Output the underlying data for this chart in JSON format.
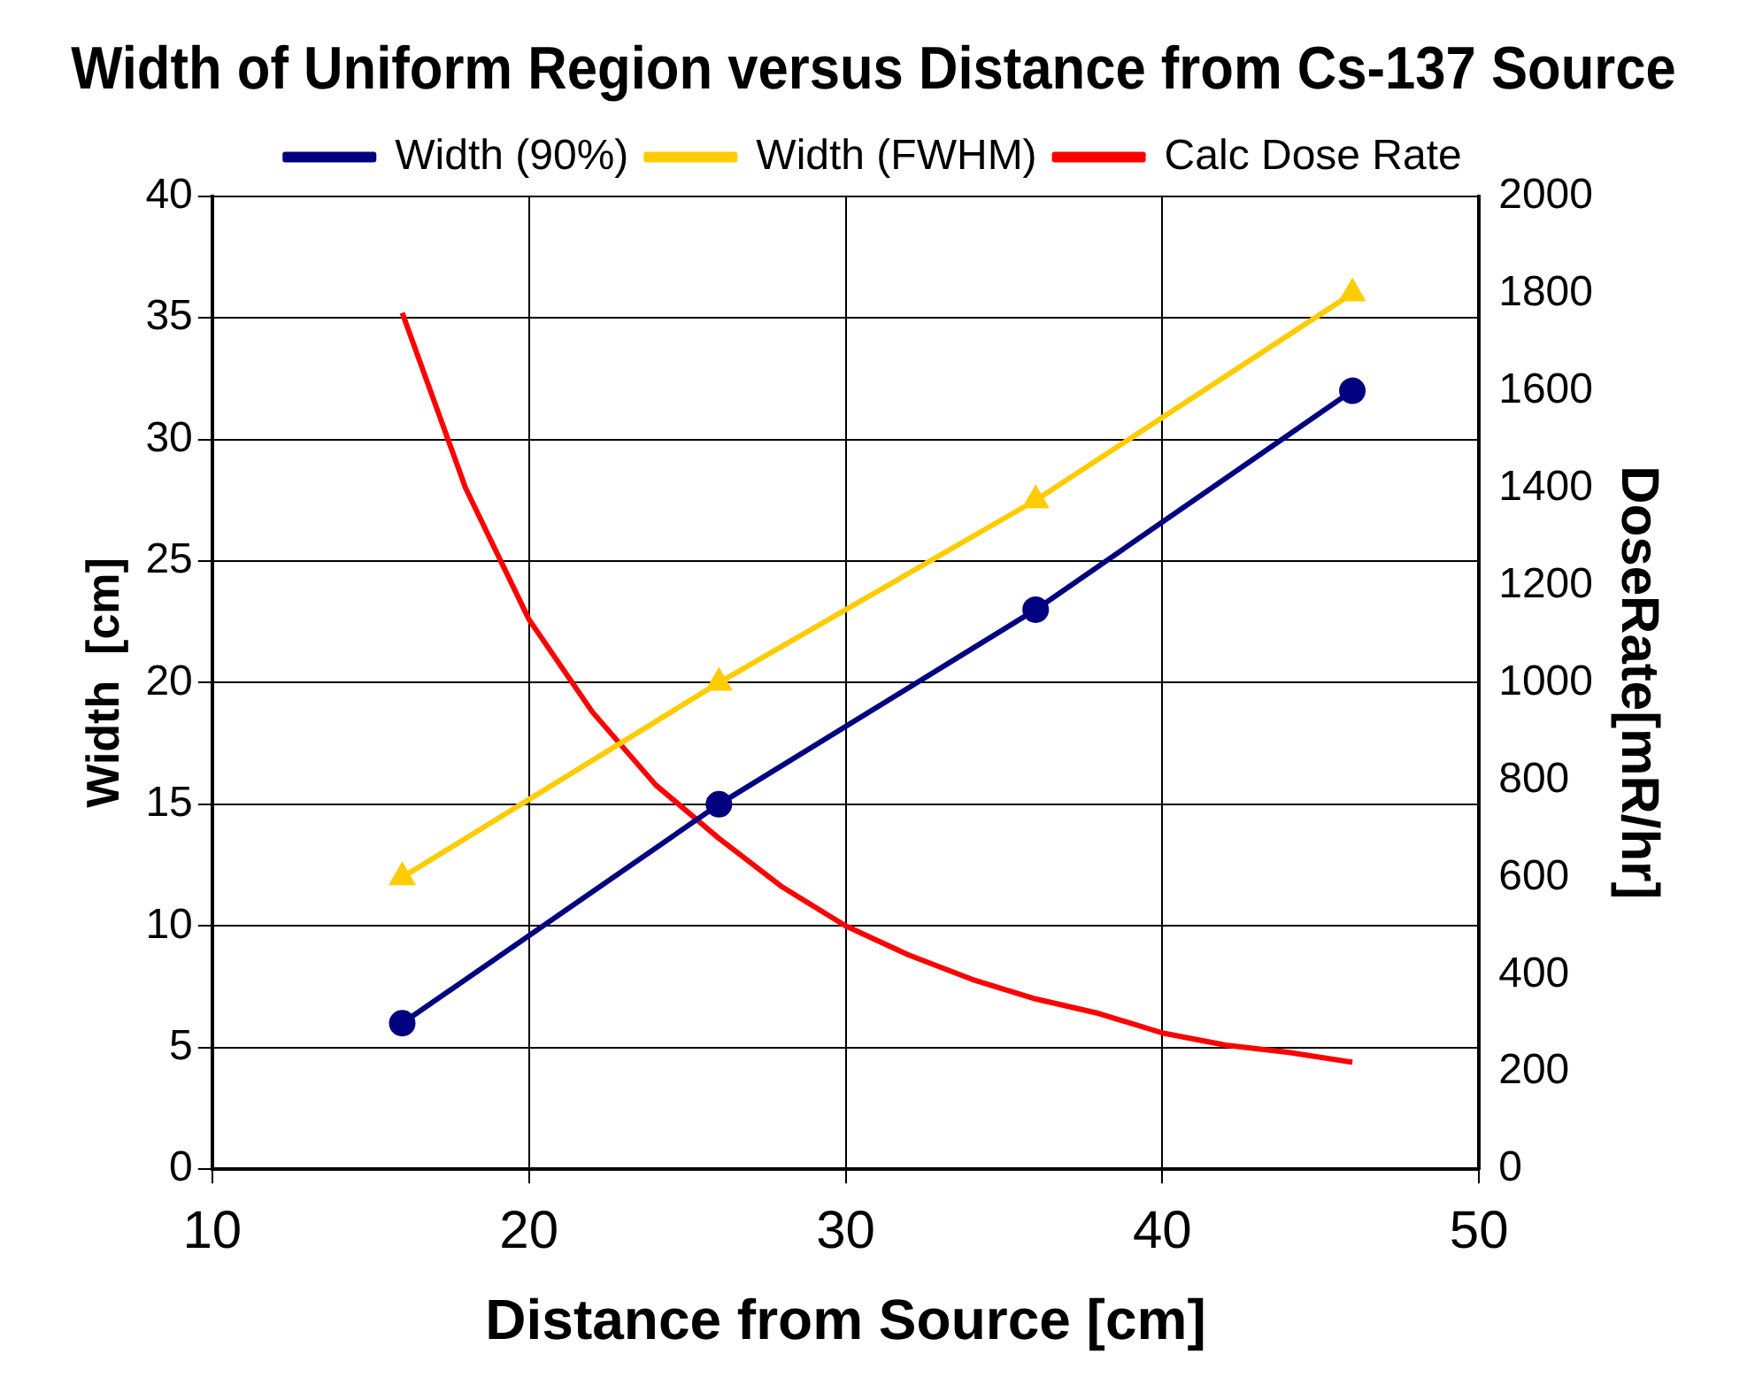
{
  "chart_data": {
    "type": "line",
    "title": "Width of Uniform Region versus Distance from Cs-137 Source",
    "xlabel": "Distance from Source [cm]",
    "ylabel": "Width  [cm]",
    "y2label": "DoseRate[mR/hr]",
    "xlim": [
      10,
      50
    ],
    "xticks": [
      10,
      20,
      30,
      40,
      50
    ],
    "ylim": [
      0,
      40
    ],
    "yticks": [
      0,
      5,
      10,
      15,
      20,
      25,
      30,
      35,
      40
    ],
    "y2lim": [
      0,
      2000
    ],
    "y2ticks": [
      0,
      200,
      400,
      600,
      800,
      1000,
      1200,
      1400,
      1600,
      1800,
      2000
    ],
    "grid": true,
    "legend": "top",
    "series": [
      {
        "name": "Width (90%)",
        "color": "#000080",
        "marker": "circle",
        "x": [
          16,
          26,
          36,
          46
        ],
        "values": [
          6,
          15,
          23,
          32
        ]
      },
      {
        "name": "Width (FWHM)",
        "color": "#ffcc00",
        "marker": "triangle",
        "x": [
          16,
          26,
          36,
          46
        ],
        "values": [
          12,
          20,
          27.5,
          36
        ]
      },
      {
        "name": "Calc Dose Rate",
        "color": "#ff0000",
        "marker": "none",
        "axis": "y2",
        "x": [
          16,
          18,
          20,
          22,
          24,
          26,
          28,
          30,
          32,
          34,
          36,
          38,
          40,
          42,
          44,
          46
        ],
        "values": [
          1760,
          1400,
          1130,
          940,
          790,
          680,
          580,
          500,
          440,
          390,
          350,
          320,
          280,
          255,
          240,
          220
        ]
      }
    ]
  }
}
